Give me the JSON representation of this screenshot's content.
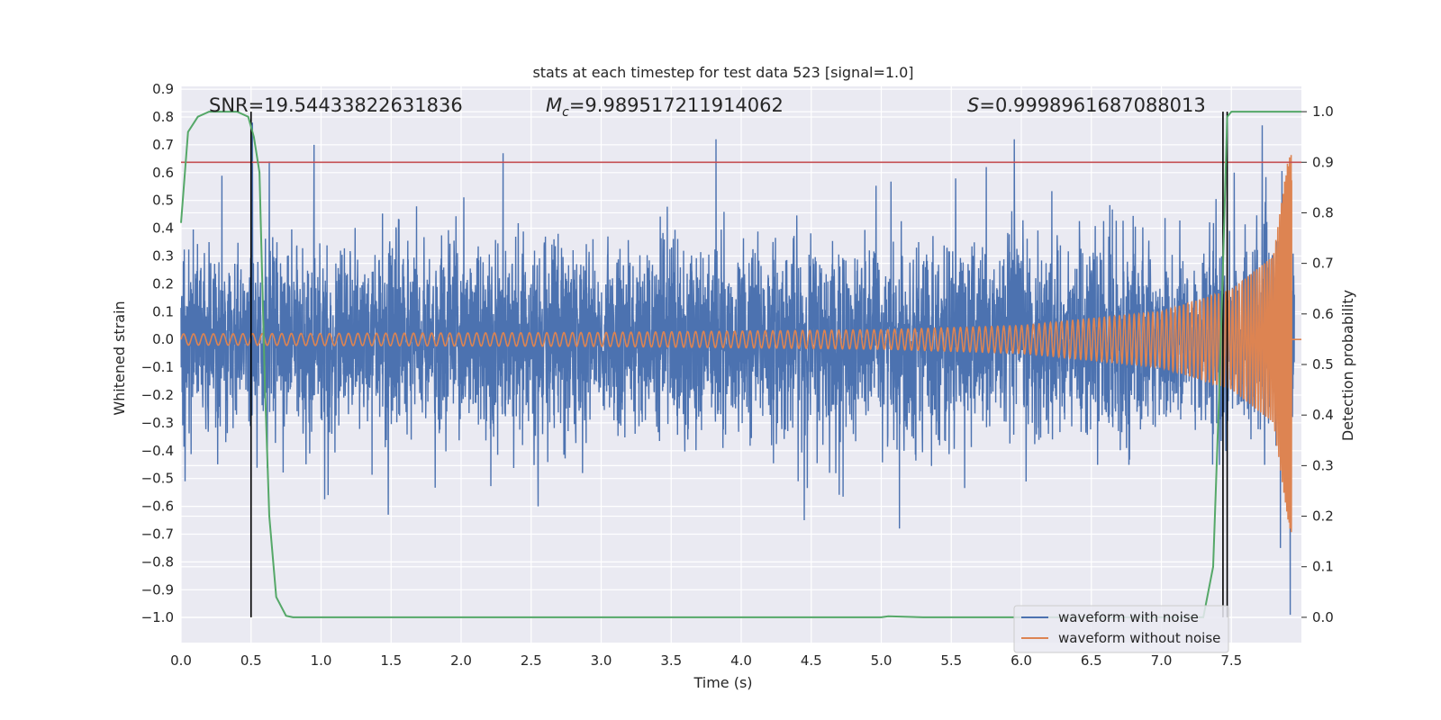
{
  "chart_data": {
    "type": "line",
    "title": "stats at each timestep for test data 523 [signal=1.0]",
    "xlabel": "Time (s)",
    "ylabel": "Whitened strain",
    "y2label": "Detection probability",
    "xlim": [
      0.0,
      8.0
    ],
    "ylim": [
      -1.09,
      0.91
    ],
    "y2lim": [
      -0.05,
      1.05
    ],
    "xticks": [
      "0.0",
      "0.5",
      "1.0",
      "1.5",
      "2.0",
      "2.5",
      "3.0",
      "3.5",
      "4.0",
      "4.5",
      "5.0",
      "5.5",
      "6.0",
      "6.5",
      "7.0",
      "7.5"
    ],
    "yticks": [
      "0.9",
      "0.8",
      "0.7",
      "0.6",
      "0.5",
      "0.4",
      "0.3",
      "0.2",
      "0.1",
      "0.0",
      "−0.1",
      "−0.2",
      "−0.3",
      "−0.4",
      "−0.5",
      "−0.6",
      "−0.7",
      "−0.8",
      "−0.9",
      "−1.0"
    ],
    "y2ticks": [
      "1.0",
      "0.9",
      "0.8",
      "0.7",
      "0.6",
      "0.5",
      "0.4",
      "0.3",
      "0.2",
      "0.1",
      "0.0"
    ],
    "grid": true,
    "legend_placement": "lower-right",
    "annotations": {
      "snr": "SNR=19.54433822631836",
      "mc_symbol": "M",
      "mc_sub": "c",
      "mc_value": "=9.989517211914062",
      "s_symbol": "S",
      "s_value": "=0.9998961687088013"
    },
    "threshold_line": {
      "name": "detection threshold",
      "y2": 0.9,
      "color": "#c44e52"
    },
    "vertical_markers": [
      0.5,
      7.44,
      7.47
    ],
    "series": [
      {
        "name": "waveform with noise",
        "color": "#4c72b0",
        "axis": "left",
        "description": "white-noise strain, mean 0, peaks reach about ±0.8, t from 0 to 7.95 s",
        "notable_peaks": [
          {
            "x": 0.2,
            "y": 0.35
          },
          {
            "x": 0.51,
            "y": 0.78
          },
          {
            "x": 0.63,
            "y": 0.64
          },
          {
            "x": 0.95,
            "y": 0.7
          },
          {
            "x": 1.48,
            "y": -0.63
          },
          {
            "x": 2.3,
            "y": 0.67
          },
          {
            "x": 2.55,
            "y": -0.6
          },
          {
            "x": 3.82,
            "y": 0.72
          },
          {
            "x": 4.45,
            "y": -0.65
          },
          {
            "x": 5.13,
            "y": -0.68
          },
          {
            "x": 5.75,
            "y": 0.62
          },
          {
            "x": 5.95,
            "y": 0.72
          },
          {
            "x": 7.52,
            "y": 0.6
          },
          {
            "x": 7.72,
            "y": 0.77
          },
          {
            "x": 7.85,
            "y": -0.75
          },
          {
            "x": 7.92,
            "y": -0.99
          }
        ]
      },
      {
        "name": "waveform without noise",
        "color": "#dd8452",
        "axis": "left",
        "description": "chirp signal, amplitude grows from 0.02 to about 0.7 near 7.95 s, frequency increases; flat zero after merger",
        "amplitude_envelope": [
          {
            "x": 0.0,
            "y": 0.02
          },
          {
            "x": 3.0,
            "y": 0.025
          },
          {
            "x": 5.0,
            "y": 0.035
          },
          {
            "x": 6.0,
            "y": 0.05
          },
          {
            "x": 7.0,
            "y": 0.1
          },
          {
            "x": 7.5,
            "y": 0.18
          },
          {
            "x": 7.8,
            "y": 0.3
          },
          {
            "x": 7.92,
            "y": 0.7
          }
        ]
      },
      {
        "name": "detection probability",
        "color": "#55a868",
        "axis": "right",
        "x": [
          0.0,
          0.05,
          0.12,
          0.2,
          0.4,
          0.48,
          0.52,
          0.56,
          0.6,
          0.63,
          0.68,
          0.75,
          0.8,
          1.0,
          2.0,
          3.0,
          4.0,
          5.0,
          5.05,
          5.3,
          6.0,
          7.0,
          7.3,
          7.37,
          7.42,
          7.47,
          7.5,
          7.6,
          8.0
        ],
        "y": [
          0.78,
          0.96,
          0.99,
          1.0,
          1.0,
          0.99,
          0.95,
          0.88,
          0.45,
          0.2,
          0.04,
          0.003,
          0.0,
          0.0,
          0.0,
          0.0,
          0.0,
          0.0,
          0.002,
          0.0,
          0.0,
          0.0,
          0.0,
          0.1,
          0.5,
          0.99,
          1.0,
          1.0,
          1.0
        ]
      }
    ]
  }
}
